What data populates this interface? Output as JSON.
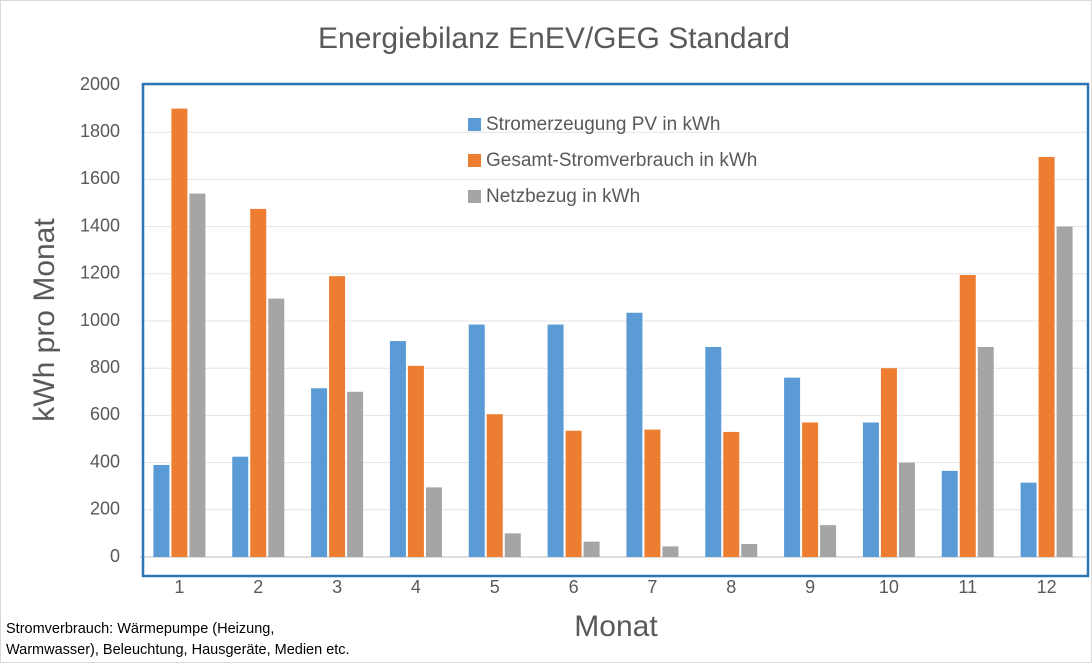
{
  "chart_data": {
    "type": "bar",
    "title": "Energiebilanz EnEV/GEG Standard",
    "xlabel": "Monat",
    "ylabel": "kWh pro Monat",
    "categories": [
      "1",
      "2",
      "3",
      "4",
      "5",
      "6",
      "7",
      "8",
      "9",
      "10",
      "11",
      "12"
    ],
    "series": [
      {
        "name": "Stromerzeugung PV in kWh",
        "color": "#5b9bd5",
        "values": [
          390,
          425,
          715,
          915,
          985,
          985,
          1035,
          890,
          760,
          570,
          365,
          315
        ]
      },
      {
        "name": "Gesamt-Stromverbrauch in kWh",
        "color": "#ed7d31",
        "values": [
          1900,
          1475,
          1190,
          810,
          605,
          535,
          540,
          530,
          570,
          800,
          1195,
          1695
        ]
      },
      {
        "name": "Netzbezug in kWh",
        "color": "#a5a5a5",
        "values": [
          1540,
          1095,
          700,
          295,
          100,
          65,
          45,
          55,
          135,
          400,
          890,
          1400
        ]
      }
    ],
    "ylim": [
      0,
      2000
    ],
    "yticks": [
      0,
      200,
      400,
      600,
      800,
      1000,
      1200,
      1400,
      1600,
      1800,
      2000
    ],
    "grid": true,
    "legend": "top",
    "footnote": [
      "Stromverbrauch: Wärmepumpe (Heizung,",
      "Warmwasser), Beleuchtung, Hausgeräte, Medien etc."
    ]
  }
}
